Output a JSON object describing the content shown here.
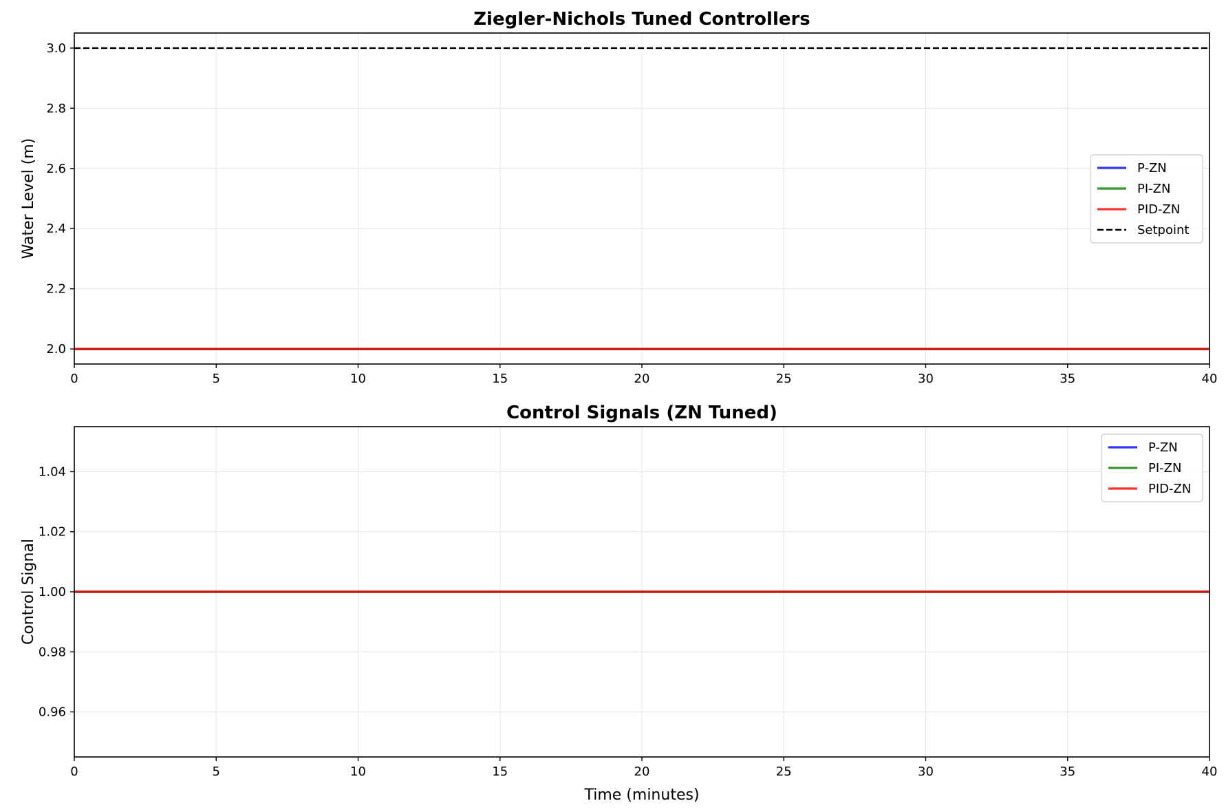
{
  "chart_data": [
    {
      "type": "line",
      "title": "Ziegler-Nichols Tuned Controllers",
      "xlabel": "",
      "ylabel": "Water Level (m)",
      "xlim": [
        0,
        40
      ],
      "ylim": [
        1.95,
        3.05
      ],
      "xticks": [
        0,
        5,
        10,
        15,
        20,
        25,
        30,
        35,
        40
      ],
      "yticks": [
        2.0,
        2.2,
        2.4,
        2.6,
        2.8,
        3.0
      ],
      "ytick_decimals": 1,
      "grid": true,
      "legend": "center-right",
      "series": [
        {
          "name": "P-ZN",
          "color": "#0000ff",
          "style": "solid",
          "x": [
            0,
            40
          ],
          "y": [
            2.0,
            2.0
          ]
        },
        {
          "name": "PI-ZN",
          "color": "#008000",
          "style": "solid",
          "x": [
            0,
            40
          ],
          "y": [
            2.0,
            2.0
          ]
        },
        {
          "name": "PID-ZN",
          "color": "#ff0000",
          "style": "solid",
          "x": [
            0,
            40
          ],
          "y": [
            2.0,
            2.0
          ]
        },
        {
          "name": "Setpoint",
          "color": "#000000",
          "style": "dashed",
          "x": [
            0,
            40
          ],
          "y": [
            3.0,
            3.0
          ]
        }
      ]
    },
    {
      "type": "line",
      "title": "Control Signals (ZN Tuned)",
      "xlabel": "Time (minutes)",
      "ylabel": "Control Signal",
      "xlim": [
        0,
        40
      ],
      "ylim": [
        0.945,
        1.055
      ],
      "xticks": [
        0,
        5,
        10,
        15,
        20,
        25,
        30,
        35,
        40
      ],
      "yticks": [
        0.96,
        0.98,
        1.0,
        1.02,
        1.04
      ],
      "ytick_decimals": 2,
      "grid": true,
      "legend": "top-right",
      "series": [
        {
          "name": "P-ZN",
          "color": "#0000ff",
          "style": "solid",
          "x": [
            0,
            40
          ],
          "y": [
            1.0,
            1.0
          ]
        },
        {
          "name": "PI-ZN",
          "color": "#008000",
          "style": "solid",
          "x": [
            0,
            40
          ],
          "y": [
            1.0,
            1.0
          ]
        },
        {
          "name": "PID-ZN",
          "color": "#ff0000",
          "style": "solid",
          "x": [
            0,
            40
          ],
          "y": [
            1.0,
            1.0
          ]
        }
      ]
    }
  ]
}
